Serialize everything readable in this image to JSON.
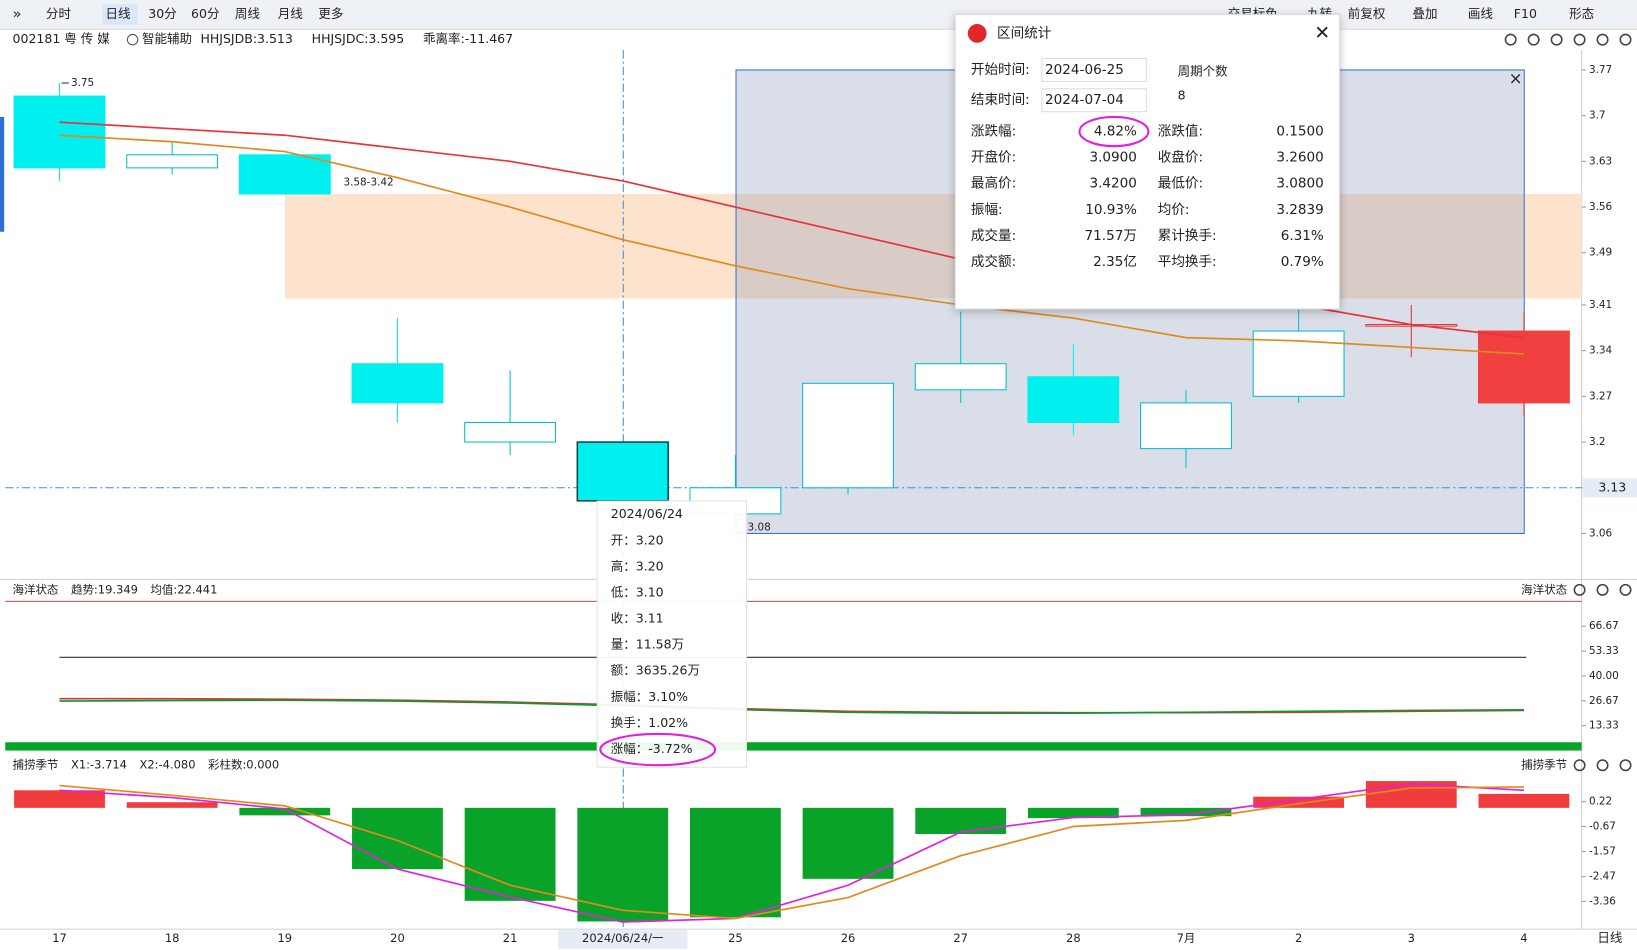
{
  "toolbar": {
    "tabs": [
      "分时",
      "日线",
      "30分",
      "60分",
      "周线",
      "月线",
      "更多"
    ],
    "tools": [
      "交易标色",
      "九转",
      "前复权",
      "叠加",
      "画线",
      "F10",
      "形态"
    ]
  },
  "info": {
    "code": "002181 粤 传 媒",
    "assist": "智能辅助",
    "indicators": [
      {
        "text": "HHJSJDB:3.513",
        "color": "#e08a00"
      },
      {
        "text": "HHJSJDC:3.595",
        "color": "#e03030"
      },
      {
        "text": "乖离率:-11.467",
        "color": "#e08a00"
      }
    ]
  },
  "chart": {
    "categories": [
      "17",
      "18",
      "19",
      "20",
      "21",
      "2024/06/24/一",
      "25",
      "26",
      "27",
      "28",
      "7月",
      "2",
      "3",
      "4"
    ],
    "candles": [
      {
        "open": 3.73,
        "high": 3.75,
        "low": 3.6,
        "close": 3.62,
        "color": "#00f0f0",
        "hollow": false
      },
      {
        "open": 3.62,
        "high": 3.66,
        "low": 3.61,
        "close": 3.64,
        "color": "#00c0d0",
        "hollow": true
      },
      {
        "open": 3.64,
        "high": 3.64,
        "low": 3.58,
        "close": 3.58,
        "color": "#00f0f0",
        "hollow": false
      },
      {
        "open": 3.32,
        "high": 3.39,
        "low": 3.23,
        "close": 3.26,
        "color": "#00f0f0",
        "hollow": false
      },
      {
        "open": 3.2,
        "high": 3.31,
        "low": 3.18,
        "close": 3.23,
        "color": "#00c0d0",
        "hollow": true
      },
      {
        "open": 3.2,
        "high": 3.2,
        "low": 3.1,
        "close": 3.11,
        "color": "#00f0f0",
        "hollow": false
      },
      {
        "open": 3.09,
        "high": 3.18,
        "low": 3.08,
        "close": 3.13,
        "color": "#00c0d0",
        "hollow": true
      },
      {
        "open": 3.13,
        "high": 3.29,
        "low": 3.12,
        "close": 3.29,
        "color": "#00c0d0",
        "hollow": true
      },
      {
        "open": 3.28,
        "high": 3.4,
        "low": 3.26,
        "close": 3.32,
        "color": "#00c0d0",
        "hollow": true
      },
      {
        "open": 3.3,
        "high": 3.35,
        "low": 3.21,
        "close": 3.23,
        "color": "#00f0f0",
        "hollow": false
      },
      {
        "open": 3.19,
        "high": 3.28,
        "low": 3.16,
        "close": 3.26,
        "color": "#00c0d0",
        "hollow": true
      },
      {
        "open": 3.27,
        "high": 3.42,
        "low": 3.26,
        "close": 3.37,
        "color": "#00c0d0",
        "hollow": true
      },
      {
        "open": 3.38,
        "high": 3.41,
        "low": 3.33,
        "close": 3.38,
        "color": "#e03030",
        "hollow": true
      },
      {
        "open": 3.37,
        "high": 3.4,
        "low": 3.24,
        "close": 3.26,
        "color": "#f04040",
        "hollow": false
      }
    ],
    "ma": [
      {
        "color": "#e8323c",
        "values": [
          3.69,
          3.68,
          3.67,
          3.65,
          3.63,
          3.6,
          3.56,
          3.52,
          3.48,
          3.45,
          3.43,
          3.41,
          3.38,
          3.36
        ]
      },
      {
        "color": "#e08a1e",
        "values": [
          3.67,
          3.66,
          3.645,
          3.605,
          3.56,
          3.51,
          3.47,
          3.435,
          3.41,
          3.39,
          3.36,
          3.355,
          3.345,
          3.335
        ]
      }
    ],
    "ylim": [
      3.06,
      3.77
    ],
    "yticks": [
      3.06,
      3.13,
      3.2,
      3.27,
      3.34,
      3.41,
      3.49,
      3.56,
      3.63,
      3.7,
      3.77
    ],
    "current_price": 3.13,
    "zone": {
      "label": "3.58-3.42",
      "top": 3.58,
      "bottom": 3.42,
      "color": "#fde3cc"
    }
  },
  "oscillator1": {
    "title": "海洋状态",
    "legend": [
      {
        "text": "趋势:19.349",
        "color": "#e03030"
      },
      {
        "text": "均值:22.441",
        "color": "#0a9a30"
      }
    ],
    "ylim": [
      6.1,
      80.6
    ],
    "yticks": [
      13.33,
      26.67,
      {
        "value": 40,
        "label": "40.00"
      },
      53.33,
      66.67
    ],
    "levels": [
      {
        "value": 80,
        "color": "#e04040"
      },
      {
        "value": 50,
        "color": "#333333"
      }
    ],
    "series": [
      {
        "color": "#e03030",
        "values": [
          27.8,
          27.8,
          27.5,
          27,
          26,
          24.5,
          22.5,
          21,
          20.5,
          20.3,
          20.3,
          20.5,
          21,
          21.5
        ]
      },
      {
        "color": "#0a9a30",
        "values": [
          26.5,
          26.8,
          27,
          26.5,
          25.5,
          24,
          22,
          20.5,
          20,
          20,
          20.5,
          21,
          21.5,
          21.8
        ]
      }
    ]
  },
  "oscillator2": {
    "title": "捕捞季节",
    "legend": [
      {
        "text": "X1:-3.714",
        "color": "#e05020"
      },
      {
        "text": "X2:-4.080",
        "color": "#d020d0"
      },
      {
        "text": "彩柱数:0.000",
        "color": "#0a9a30"
      }
    ],
    "ylim": [
      -4.28,
      1.08
    ],
    "yticks": [
      -3.36,
      -2.47,
      -1.57,
      -0.67,
      0.22
    ],
    "up_color": "#f03c3c",
    "down_color": "#0aa32a",
    "bars": [
      0.63,
      0.2,
      -0.27,
      -2.2,
      -3.34,
      -4.08,
      -3.93,
      -2.55,
      -0.94,
      -0.37,
      -0.3,
      0.4,
      0.96,
      0.5
    ],
    "series": [
      {
        "color": "#e020e0",
        "values": [
          0.63,
          0.37,
          -0.04,
          -2.2,
          -3.2,
          -4.1,
          -3.97,
          -2.78,
          -0.87,
          -0.35,
          -0.25,
          0.3,
          0.86,
          0.63
        ]
      },
      {
        "color": "#e08a1e",
        "values": [
          0.8,
          0.45,
          0.07,
          -1.17,
          -2.78,
          -3.68,
          -3.97,
          -3.22,
          -1.72,
          -0.67,
          -0.45,
          0.15,
          0.71,
          0.75
        ]
      }
    ]
  },
  "tooltip": {
    "date": "2024/06/24",
    "rows": [
      "开：3.20",
      "高：3.20",
      "低：3.10",
      "收：3.11",
      "量：11.58万",
      "额：3635.26万",
      "振幅：3.10%",
      "换手：1.02%",
      "涨幅：-3.72%"
    ]
  },
  "interval": {
    "title": "区间统计",
    "start_label": "开始时间:",
    "start": "2024-06-25",
    "end_label": "结束时间:",
    "end": "2024-07-04",
    "count_label": "周期个数",
    "count": 8,
    "stats": [
      [
        "涨跌幅:",
        "4.82%",
        "涨跌值:",
        "0.1500"
      ],
      [
        "开盘价:",
        "3.0900",
        "收盘价:",
        "3.2600"
      ],
      [
        "最高价:",
        "3.4200",
        "最低价:",
        "3.0800"
      ],
      [
        "振幅:",
        "10.93%",
        "均价:",
        "3.2839"
      ],
      [
        "成交量:",
        "71.57万",
        "累计换手:",
        "6.31%"
      ],
      [
        "成交额:",
        "2.35亿",
        "平均换手:",
        "0.79%"
      ]
    ]
  },
  "period": "日线"
}
